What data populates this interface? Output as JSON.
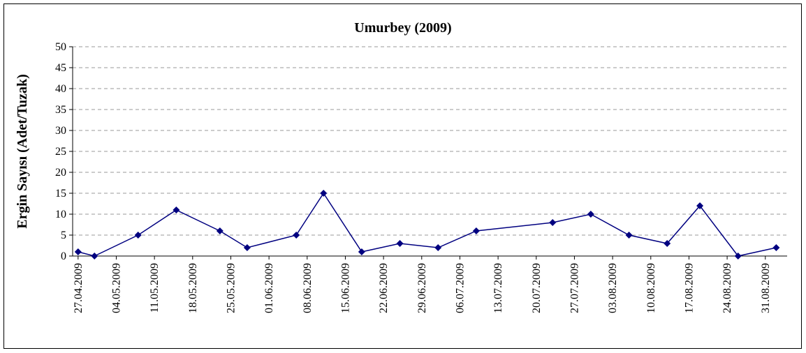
{
  "chart_data": {
    "type": "line",
    "title": "Umurbey (2009)",
    "y_label": "Ergin Sayısı (Adet/Tuzak)",
    "x": [
      "2009-04-27",
      "2009-04-30",
      "2009-05-08",
      "2009-05-15",
      "2009-05-23",
      "2009-05-28",
      "2009-06-06",
      "2009-06-11",
      "2009-06-18",
      "2009-06-25",
      "2009-07-02",
      "2009-07-09",
      "2009-07-23",
      "2009-07-30",
      "2009-08-06",
      "2009-08-13",
      "2009-08-19",
      "2009-08-26",
      "2009-09-02"
    ],
    "series": [
      {
        "name": "Umurbey",
        "color": "#000080",
        "values": [
          1,
          0,
          5,
          11,
          6,
          2,
          5,
          15,
          1,
          3,
          2,
          6,
          8,
          10,
          5,
          3,
          12,
          0,
          2
        ]
      }
    ],
    "xlim": [
      "2009-04-26",
      "2009-09-04"
    ],
    "xticks": [
      {
        "value": "2009-04-27",
        "label": "27.04.2009"
      },
      {
        "value": "2009-05-04",
        "label": "04.05.2009"
      },
      {
        "value": "2009-05-11",
        "label": "11.05.2009"
      },
      {
        "value": "2009-05-18",
        "label": "18.05.2009"
      },
      {
        "value": "2009-05-25",
        "label": "25.05.2009"
      },
      {
        "value": "2009-06-01",
        "label": "01.06.2009"
      },
      {
        "value": "2009-06-08",
        "label": "08.06.2009"
      },
      {
        "value": "2009-06-15",
        "label": "15.06.2009"
      },
      {
        "value": "2009-06-22",
        "label": "22.06.2009"
      },
      {
        "value": "2009-06-29",
        "label": "29.06.2009"
      },
      {
        "value": "2009-07-06",
        "label": "06.07.2009"
      },
      {
        "value": "2009-07-13",
        "label": "13.07.2009"
      },
      {
        "value": "2009-07-20",
        "label": "20.07.2009"
      },
      {
        "value": "2009-07-27",
        "label": "27.07.2009"
      },
      {
        "value": "2009-08-03",
        "label": "03.08.2009"
      },
      {
        "value": "2009-08-10",
        "label": "10.08.2009"
      },
      {
        "value": "2009-08-17",
        "label": "17.08.2009"
      },
      {
        "value": "2009-08-24",
        "label": "24.08.2009"
      },
      {
        "value": "2009-08-31",
        "label": "31.08.2009"
      }
    ],
    "ylim": [
      0,
      50
    ],
    "yticks": [
      0,
      5,
      10,
      15,
      20,
      25,
      30,
      35,
      40,
      45,
      50
    ],
    "grid": true
  }
}
